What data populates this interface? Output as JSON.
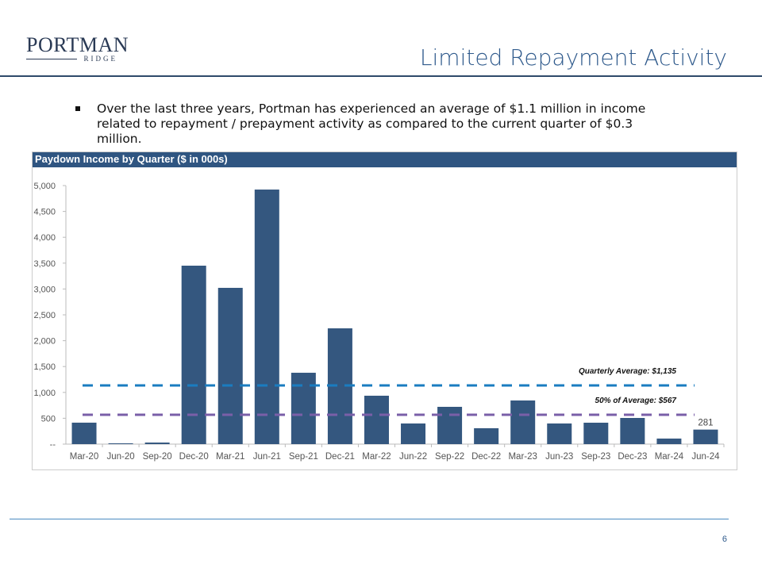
{
  "logo": {
    "main": "PORTMAN",
    "sub": "RIDGE"
  },
  "title": "Limited Repayment Activity",
  "bullet": "Over the last three years, Portman has experienced an average of $1.1 million in income related to repayment / prepayment activity as compared to the current quarter of $0.3 million.",
  "page_number": "6",
  "chart_data": {
    "type": "bar",
    "title": "Paydown Income by Quarter ($ in 000s)",
    "categories": [
      "Mar-20",
      "Jun-20",
      "Sep-20",
      "Dec-20",
      "Mar-21",
      "Jun-21",
      "Sep-21",
      "Dec-21",
      "Mar-22",
      "Jun-22",
      "Sep-22",
      "Dec-22",
      "Mar-23",
      "Jun-23",
      "Sep-23",
      "Dec-23",
      "Mar-24",
      "Jun-24"
    ],
    "values": [
      415,
      15,
      30,
      3451,
      3022,
      4923,
      1380,
      2239,
      936,
      399,
      721,
      307,
      844,
      399,
      414,
      506,
      107,
      281
    ],
    "data_labels": [
      {
        "index": 17,
        "text": "281"
      }
    ],
    "ylim": [
      0,
      5000
    ],
    "yticks": [
      "--",
      "500",
      "1,000",
      "1,500",
      "2,000",
      "2,500",
      "3,000",
      "3,500",
      "4,000",
      "4,500",
      "5,000"
    ],
    "bar_color": "#34577f",
    "reference_lines": [
      {
        "label": "Quarterly Average: $1,135",
        "value": 1135,
        "color": "#1a7cc0"
      },
      {
        "label": "50% of Average: $567",
        "value": 567,
        "color": "#7a5fa8"
      }
    ]
  }
}
